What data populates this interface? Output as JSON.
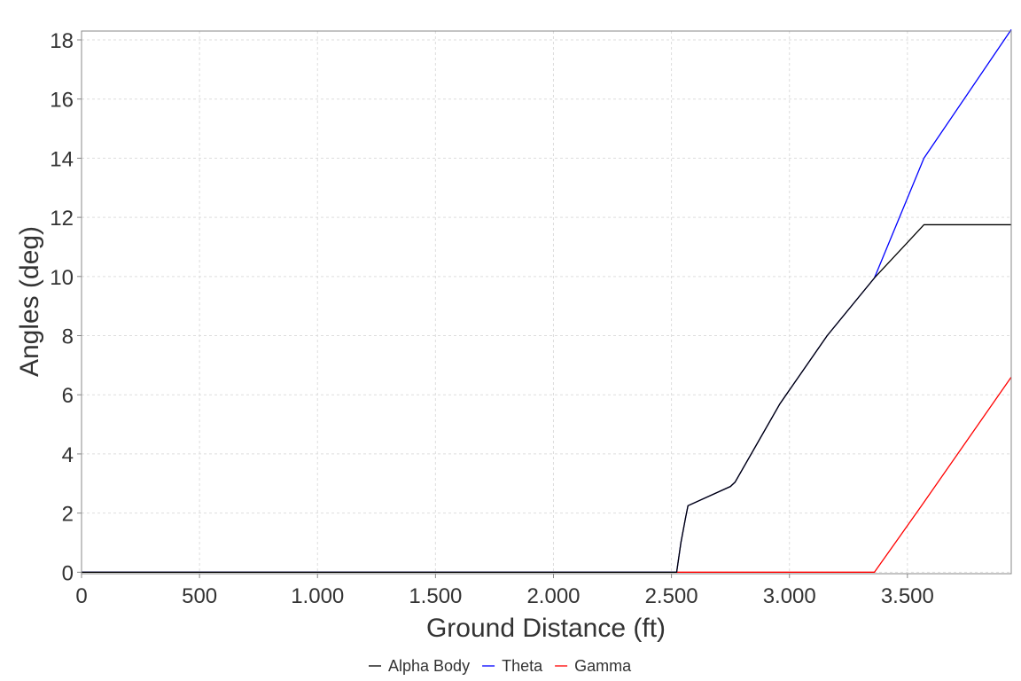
{
  "chart_data": {
    "type": "line",
    "xlabel": "Ground Distance (ft)",
    "ylabel": "Angles (deg)",
    "xlim": [
      0,
      3940
    ],
    "ylim": [
      -0.05,
      18.3
    ],
    "x_ticks": [
      0,
      500,
      1000,
      1500,
      2000,
      2500,
      3000,
      3500
    ],
    "x_tick_labels": [
      "0",
      "500",
      "1.000",
      "1.500",
      "2.000",
      "2.500",
      "3.000",
      "3.500"
    ],
    "y_ticks": [
      0,
      2,
      4,
      6,
      8,
      10,
      12,
      14,
      16,
      18
    ],
    "y_tick_labels": [
      "0",
      "2",
      "4",
      "6",
      "8",
      "10",
      "12",
      "14",
      "16",
      "18"
    ],
    "grid": true,
    "legend_position": "bottom",
    "series": [
      {
        "name": "Alpha Body",
        "color": "#000000",
        "points": [
          [
            0,
            0
          ],
          [
            2522,
            0
          ],
          [
            2540,
            1.0
          ],
          [
            2560,
            1.85
          ],
          [
            2570,
            2.25
          ],
          [
            2750,
            2.9
          ],
          [
            2770,
            3.05
          ],
          [
            2960,
            5.7
          ],
          [
            3160,
            8.0
          ],
          [
            3360,
            9.95
          ],
          [
            3570,
            11.75
          ],
          [
            3940,
            11.75
          ]
        ]
      },
      {
        "name": "Theta",
        "color": "#0000ff",
        "points": [
          [
            0,
            0
          ],
          [
            2522,
            0
          ],
          [
            2540,
            1.0
          ],
          [
            2560,
            1.85
          ],
          [
            2570,
            2.25
          ],
          [
            2750,
            2.9
          ],
          [
            2770,
            3.05
          ],
          [
            2960,
            5.7
          ],
          [
            3160,
            8.0
          ],
          [
            3360,
            9.95
          ],
          [
            3570,
            14.0
          ],
          [
            3940,
            18.35
          ]
        ]
      },
      {
        "name": "Gamma",
        "color": "#ff0000",
        "points": [
          [
            2522,
            0
          ],
          [
            3360,
            0
          ],
          [
            3560,
            2.25
          ],
          [
            3940,
            6.6
          ]
        ]
      }
    ]
  }
}
